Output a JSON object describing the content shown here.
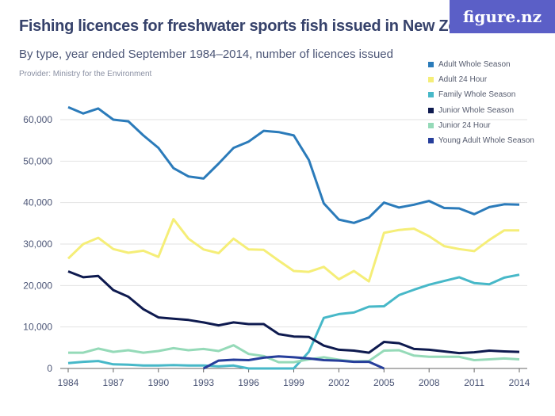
{
  "header": {
    "title": "Fishing licences for freshwater sports fish issued in New Zealand",
    "subtitle": "By type, year ended September 1984–2014, number of licences issued",
    "provider": "Provider: Ministry for the Environment",
    "logo": "figure.nz"
  },
  "chart_data": {
    "type": "line",
    "title": "Fishing licences for freshwater sports fish issued in New Zealand",
    "subtitle": "By type, year ended September 1984–2014, number of licences issued",
    "xlabel": "",
    "ylabel": "",
    "x": [
      1984,
      1985,
      1986,
      1987,
      1988,
      1989,
      1990,
      1991,
      1992,
      1993,
      1994,
      1995,
      1996,
      1997,
      1998,
      1999,
      2000,
      2001,
      2002,
      2003,
      2004,
      2005,
      2006,
      2007,
      2008,
      2009,
      2010,
      2011,
      2012,
      2013,
      2014
    ],
    "xticks": [
      "1984",
      "1987",
      "1990",
      "1993",
      "1996",
      "1999",
      "2002",
      "2005",
      "2008",
      "2011",
      "2014"
    ],
    "yticks": [
      "0",
      "10,000",
      "20,000",
      "30,000",
      "40,000",
      "50,000",
      "60,000"
    ],
    "ylim": [
      0,
      60000
    ],
    "grid": true,
    "legend_position": "top-right",
    "series": [
      {
        "name": "Adult Whole Season",
        "color": "#2b7bba",
        "values": [
          63000,
          61500,
          62700,
          60000,
          59600,
          56200,
          53200,
          48300,
          46300,
          45800,
          49400,
          53200,
          54700,
          57300,
          57000,
          56200,
          50300,
          39800,
          35900,
          35100,
          36400,
          40000,
          38800,
          39500,
          40400,
          38700,
          38600,
          37200,
          38900,
          39600,
          39500
        ]
      },
      {
        "name": "Adult 24 Hour",
        "color": "#f5ee78",
        "values": [
          26500,
          30000,
          31500,
          28800,
          27900,
          28400,
          26900,
          36000,
          31300,
          28700,
          27800,
          31300,
          28700,
          28600,
          26000,
          23500,
          23300,
          24500,
          21500,
          23500,
          21000,
          32700,
          33400,
          33700,
          31900,
          29500,
          28800,
          28300,
          31000,
          33300,
          33300
        ]
      },
      {
        "name": "Family Whole Season",
        "color": "#47b8c8",
        "values": [
          1300,
          1600,
          1800,
          1000,
          900,
          700,
          700,
          800,
          700,
          700,
          500,
          700,
          0,
          0,
          0,
          0,
          4000,
          12200,
          13100,
          13500,
          14900,
          15000,
          17700,
          19000,
          20200,
          21100,
          22000,
          20600,
          20300,
          21900,
          22600
        ]
      },
      {
        "name": "Junior Whole Season",
        "color": "#0e1a4f",
        "values": [
          23400,
          22000,
          22300,
          18900,
          17300,
          14300,
          12300,
          12000,
          11700,
          11100,
          10400,
          11100,
          10700,
          10700,
          8300,
          7700,
          7600,
          5500,
          4500,
          4300,
          3800,
          6400,
          6100,
          4700,
          4500,
          4100,
          3700,
          3900,
          4300,
          4100,
          4000
        ]
      },
      {
        "name": "Junior 24 Hour",
        "color": "#95dab8",
        "values": [
          3800,
          3800,
          4800,
          4000,
          4400,
          3800,
          4200,
          4900,
          4400,
          4700,
          4200,
          5600,
          3500,
          3000,
          1500,
          1500,
          2200,
          2700,
          2100,
          1700,
          1800,
          4300,
          4400,
          3100,
          2800,
          2800,
          2800,
          2000,
          2200,
          2400,
          2200
        ]
      },
      {
        "name": "Young Adult Whole Season",
        "color": "#263e9b",
        "values": [
          null,
          null,
          null,
          null,
          null,
          null,
          null,
          null,
          null,
          0,
          1900,
          2100,
          2000,
          2600,
          2900,
          2700,
          2400,
          2000,
          1900,
          1600,
          1600,
          0,
          null,
          null,
          null,
          null,
          null,
          null,
          null,
          null,
          null
        ]
      }
    ]
  }
}
